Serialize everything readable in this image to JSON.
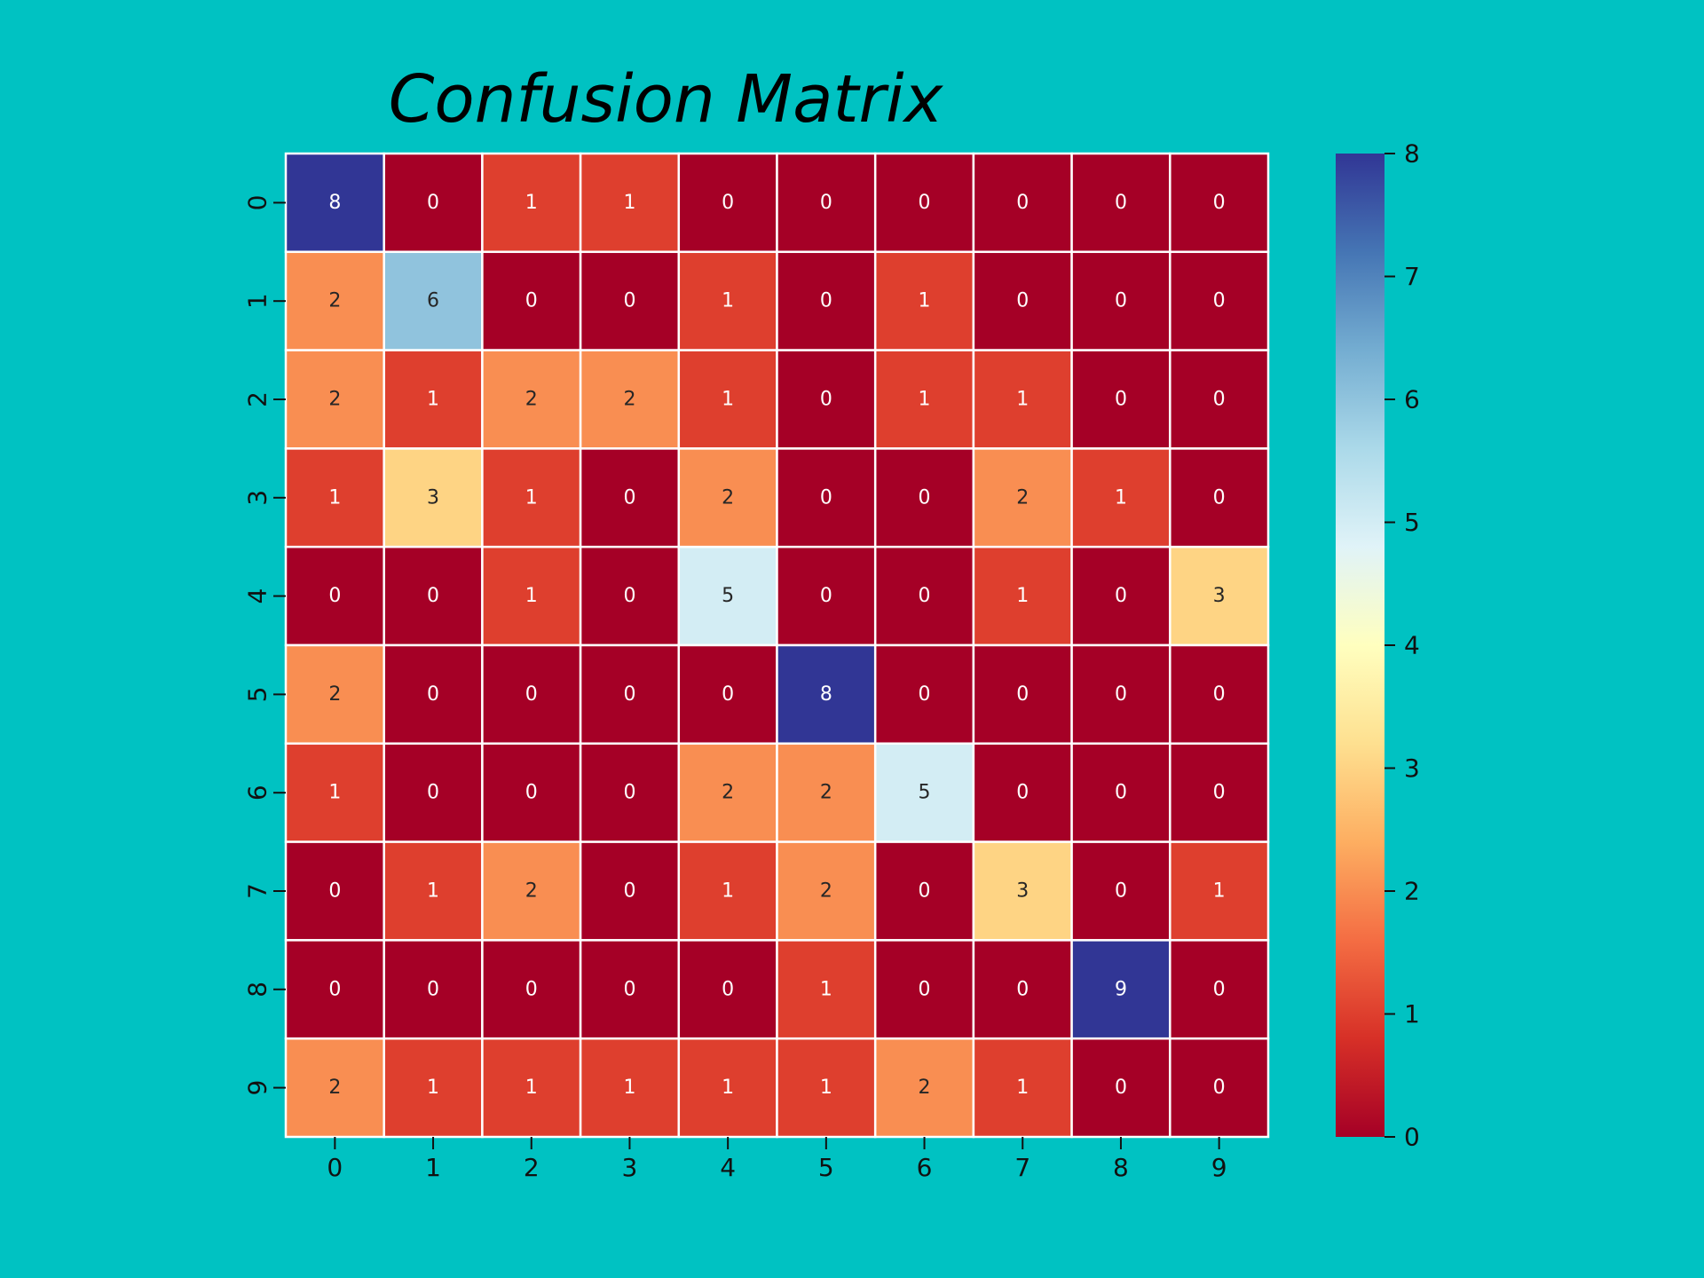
{
  "chart_data": {
    "type": "heatmap",
    "title": "Confusion Matrix",
    "xlabel": "",
    "ylabel": "",
    "x_categories": [
      "0",
      "1",
      "2",
      "3",
      "4",
      "5",
      "6",
      "7",
      "8",
      "9"
    ],
    "y_categories": [
      "0",
      "1",
      "2",
      "3",
      "4",
      "5",
      "6",
      "7",
      "8",
      "9"
    ],
    "values": [
      [
        8,
        0,
        1,
        1,
        0,
        0,
        0,
        0,
        0,
        0
      ],
      [
        2,
        6,
        0,
        0,
        1,
        0,
        1,
        0,
        0,
        0
      ],
      [
        2,
        1,
        2,
        2,
        1,
        0,
        1,
        1,
        0,
        0
      ],
      [
        1,
        3,
        1,
        0,
        2,
        0,
        0,
        2,
        1,
        0
      ],
      [
        0,
        0,
        1,
        0,
        5,
        0,
        0,
        1,
        0,
        3
      ],
      [
        2,
        0,
        0,
        0,
        0,
        8,
        0,
        0,
        0,
        0
      ],
      [
        1,
        0,
        0,
        0,
        2,
        2,
        5,
        0,
        0,
        0
      ],
      [
        0,
        1,
        2,
        0,
        1,
        2,
        0,
        3,
        0,
        1
      ],
      [
        0,
        0,
        0,
        0,
        0,
        1,
        0,
        0,
        9,
        0
      ],
      [
        2,
        1,
        1,
        1,
        1,
        1,
        2,
        1,
        0,
        0
      ]
    ],
    "colormap": "RdYlBu",
    "color_range": [
      0,
      8
    ],
    "colorbar_ticks": [
      "0",
      "1",
      "2",
      "3",
      "4",
      "5",
      "6",
      "7",
      "8"
    ],
    "annotated": true,
    "grid": false,
    "colors": {
      "background": "#00C2C2",
      "cell_border": "#FFFFFF"
    }
  }
}
